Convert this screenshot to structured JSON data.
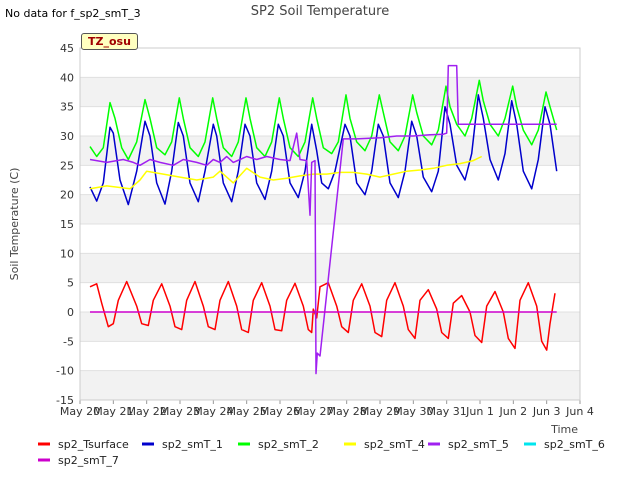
{
  "no_data_note": "No data for f_sp2_smT_3",
  "tz_label": "TZ_osu",
  "chart_data": {
    "type": "line",
    "title": "SP2 Soil Temperature",
    "xlabel": "Time",
    "ylabel": "Soil Temperature (C)",
    "ylim": [
      -15,
      45
    ],
    "yticks": [
      -15,
      -10,
      -5,
      0,
      5,
      10,
      15,
      20,
      25,
      30,
      35,
      40,
      45
    ],
    "xticks": [
      "May 20",
      "May 21",
      "May 22",
      "May 23",
      "May 24",
      "May 25",
      "May 26",
      "May 27",
      "May 28",
      "May 29",
      "May 30",
      "May 31",
      "Jun 1",
      "Jun 2",
      "Jun 3",
      "Jun 4"
    ],
    "xlim_days": [
      0,
      15
    ],
    "grid": "horizontal bands",
    "legend_position": "bottom",
    "series": [
      {
        "name": "sp2_Tsurface",
        "color": "#ff0000",
        "points": [
          [
            0.3,
            4.3
          ],
          [
            0.5,
            4.8
          ],
          [
            0.65,
            1.5
          ],
          [
            0.85,
            -2.5
          ],
          [
            1.0,
            -2.0
          ],
          [
            1.15,
            2.0
          ],
          [
            1.4,
            5.2
          ],
          [
            1.7,
            1.0
          ],
          [
            1.85,
            -2.0
          ],
          [
            2.05,
            -2.3
          ],
          [
            2.2,
            2.0
          ],
          [
            2.45,
            4.8
          ],
          [
            2.7,
            1.0
          ],
          [
            2.85,
            -2.5
          ],
          [
            3.05,
            -3.0
          ],
          [
            3.2,
            2.0
          ],
          [
            3.45,
            5.2
          ],
          [
            3.7,
            1.0
          ],
          [
            3.85,
            -2.5
          ],
          [
            4.05,
            -3.0
          ],
          [
            4.2,
            2.0
          ],
          [
            4.45,
            5.2
          ],
          [
            4.7,
            1.0
          ],
          [
            4.85,
            -3.0
          ],
          [
            5.05,
            -3.5
          ],
          [
            5.2,
            2.0
          ],
          [
            5.45,
            5.0
          ],
          [
            5.7,
            1.0
          ],
          [
            5.85,
            -3.0
          ],
          [
            6.05,
            -3.2
          ],
          [
            6.2,
            2.0
          ],
          [
            6.45,
            4.9
          ],
          [
            6.7,
            1.0
          ],
          [
            6.85,
            -3.0
          ],
          [
            6.95,
            -3.5
          ],
          [
            7.0,
            0.5
          ],
          [
            7.1,
            -1.0
          ],
          [
            7.2,
            4.3
          ],
          [
            7.45,
            5.0
          ],
          [
            7.7,
            1.0
          ],
          [
            7.85,
            -2.5
          ],
          [
            8.05,
            -3.5
          ],
          [
            8.2,
            2.0
          ],
          [
            8.45,
            4.8
          ],
          [
            8.7,
            1.0
          ],
          [
            8.85,
            -3.5
          ],
          [
            9.05,
            -4.2
          ],
          [
            9.2,
            2.0
          ],
          [
            9.45,
            5.0
          ],
          [
            9.7,
            1.0
          ],
          [
            9.85,
            -3.0
          ],
          [
            10.05,
            -4.5
          ],
          [
            10.2,
            2.0
          ],
          [
            10.45,
            3.8
          ],
          [
            10.7,
            0.5
          ],
          [
            10.85,
            -3.5
          ],
          [
            11.05,
            -4.5
          ],
          [
            11.2,
            1.5
          ],
          [
            11.45,
            2.8
          ],
          [
            11.7,
            0.0
          ],
          [
            11.85,
            -4.0
          ],
          [
            12.05,
            -5.2
          ],
          [
            12.2,
            1.0
          ],
          [
            12.45,
            3.5
          ],
          [
            12.7,
            0.0
          ],
          [
            12.85,
            -4.5
          ],
          [
            13.05,
            -6.2
          ],
          [
            13.2,
            2.0
          ],
          [
            13.45,
            5.0
          ],
          [
            13.7,
            1.0
          ],
          [
            13.85,
            -5.0
          ],
          [
            14.0,
            -6.5
          ],
          [
            14.1,
            -2.0
          ],
          [
            14.25,
            3.2
          ]
        ]
      },
      {
        "name": "sp2_smT_1",
        "color": "#0000cc",
        "points": [
          [
            0.3,
            21.3
          ],
          [
            0.5,
            18.9
          ],
          [
            0.7,
            22.0
          ],
          [
            0.9,
            31.5
          ],
          [
            1.0,
            30.5
          ],
          [
            1.2,
            22.5
          ],
          [
            1.45,
            18.3
          ],
          [
            1.7,
            24.0
          ],
          [
            1.95,
            32.5
          ],
          [
            2.1,
            30.0
          ],
          [
            2.3,
            22.0
          ],
          [
            2.55,
            18.4
          ],
          [
            2.75,
            24.0
          ],
          [
            2.95,
            32.3
          ],
          [
            3.1,
            30.0
          ],
          [
            3.3,
            22.0
          ],
          [
            3.55,
            18.8
          ],
          [
            3.75,
            24.0
          ],
          [
            4.0,
            32.0
          ],
          [
            4.1,
            30.0
          ],
          [
            4.3,
            22.0
          ],
          [
            4.55,
            18.8
          ],
          [
            4.75,
            24.0
          ],
          [
            4.95,
            32.0
          ],
          [
            5.1,
            30.0
          ],
          [
            5.3,
            22.0
          ],
          [
            5.55,
            19.2
          ],
          [
            5.75,
            24.0
          ],
          [
            5.95,
            32.0
          ],
          [
            6.1,
            30.0
          ],
          [
            6.3,
            22.0
          ],
          [
            6.55,
            19.5
          ],
          [
            6.75,
            24.0
          ],
          [
            6.95,
            32.0
          ],
          [
            7.1,
            27.5
          ],
          [
            7.25,
            22.0
          ],
          [
            7.45,
            21.0
          ],
          [
            7.65,
            24.0
          ],
          [
            7.95,
            32.0
          ],
          [
            8.1,
            30.0
          ],
          [
            8.3,
            22.0
          ],
          [
            8.55,
            20.0
          ],
          [
            8.75,
            24.0
          ],
          [
            8.95,
            32.0
          ],
          [
            9.1,
            30.0
          ],
          [
            9.3,
            22.0
          ],
          [
            9.55,
            19.5
          ],
          [
            9.75,
            24.0
          ],
          [
            9.95,
            32.5
          ],
          [
            10.1,
            30.0
          ],
          [
            10.3,
            23.0
          ],
          [
            10.55,
            20.5
          ],
          [
            10.75,
            24.0
          ],
          [
            10.95,
            35.0
          ],
          [
            11.1,
            32.0
          ],
          [
            11.3,
            25.0
          ],
          [
            11.55,
            22.5
          ],
          [
            11.75,
            27.0
          ],
          [
            11.95,
            37.0
          ],
          [
            12.1,
            33.0
          ],
          [
            12.3,
            26.0
          ],
          [
            12.55,
            22.5
          ],
          [
            12.75,
            27.0
          ],
          [
            12.95,
            36.0
          ],
          [
            13.1,
            32.0
          ],
          [
            13.3,
            24.0
          ],
          [
            13.55,
            21.0
          ],
          [
            13.75,
            26.0
          ],
          [
            13.95,
            35.0
          ],
          [
            14.1,
            32.0
          ],
          [
            14.3,
            24.0
          ]
        ]
      },
      {
        "name": "sp2_smT_2",
        "color": "#00ff00",
        "points": [
          [
            0.3,
            28.2
          ],
          [
            0.5,
            26.5
          ],
          [
            0.7,
            28.0
          ],
          [
            0.9,
            35.7
          ],
          [
            1.05,
            33.0
          ],
          [
            1.25,
            28.0
          ],
          [
            1.45,
            26.0
          ],
          [
            1.7,
            29.0
          ],
          [
            1.95,
            36.2
          ],
          [
            2.1,
            33.0
          ],
          [
            2.3,
            28.0
          ],
          [
            2.55,
            26.8
          ],
          [
            2.75,
            29.0
          ],
          [
            2.98,
            36.5
          ],
          [
            3.1,
            33.0
          ],
          [
            3.3,
            28.0
          ],
          [
            3.55,
            26.5
          ],
          [
            3.75,
            29.0
          ],
          [
            3.98,
            36.5
          ],
          [
            4.1,
            33.0
          ],
          [
            4.3,
            28.0
          ],
          [
            4.55,
            26.5
          ],
          [
            4.75,
            29.0
          ],
          [
            4.98,
            36.5
          ],
          [
            5.1,
            33.0
          ],
          [
            5.3,
            28.0
          ],
          [
            5.55,
            26.5
          ],
          [
            5.75,
            29.0
          ],
          [
            5.98,
            36.5
          ],
          [
            6.1,
            33.0
          ],
          [
            6.3,
            28.0
          ],
          [
            6.55,
            26.5
          ],
          [
            6.75,
            29.0
          ],
          [
            6.98,
            36.5
          ],
          [
            7.1,
            33.0
          ],
          [
            7.3,
            28.0
          ],
          [
            7.55,
            27.0
          ],
          [
            7.75,
            29.0
          ],
          [
            7.98,
            37.0
          ],
          [
            8.1,
            33.0
          ],
          [
            8.3,
            29.0
          ],
          [
            8.55,
            27.5
          ],
          [
            8.75,
            30.0
          ],
          [
            8.98,
            37.0
          ],
          [
            9.1,
            34.0
          ],
          [
            9.3,
            29.0
          ],
          [
            9.55,
            27.5
          ],
          [
            9.75,
            30.0
          ],
          [
            9.98,
            37.0
          ],
          [
            10.1,
            34.0
          ],
          [
            10.3,
            30.0
          ],
          [
            10.55,
            28.5
          ],
          [
            10.75,
            31.0
          ],
          [
            10.98,
            38.5
          ],
          [
            11.1,
            35.0
          ],
          [
            11.3,
            32.0
          ],
          [
            11.55,
            30.0
          ],
          [
            11.75,
            33.0
          ],
          [
            11.98,
            39.5
          ],
          [
            12.1,
            36.0
          ],
          [
            12.3,
            32.0
          ],
          [
            12.55,
            30.0
          ],
          [
            12.75,
            33.0
          ],
          [
            12.98,
            38.5
          ],
          [
            13.1,
            35.0
          ],
          [
            13.3,
            31.0
          ],
          [
            13.55,
            28.5
          ],
          [
            13.75,
            31.0
          ],
          [
            13.98,
            37.5
          ],
          [
            14.1,
            35.0
          ],
          [
            14.3,
            31.0
          ]
        ]
      },
      {
        "name": "sp2_smT_4",
        "color": "#ffff00",
        "points": [
          [
            0.3,
            21.0
          ],
          [
            0.8,
            21.5
          ],
          [
            1.5,
            21.0
          ],
          [
            1.8,
            22.5
          ],
          [
            2.0,
            24.0
          ],
          [
            2.5,
            23.5
          ],
          [
            3.0,
            23.0
          ],
          [
            3.5,
            22.5
          ],
          [
            4.0,
            23.0
          ],
          [
            4.2,
            24.0
          ],
          [
            4.6,
            22.0
          ],
          [
            5.0,
            24.5
          ],
          [
            5.4,
            23.0
          ],
          [
            5.8,
            22.5
          ],
          [
            6.2,
            22.8
          ],
          [
            6.6,
            23.2
          ],
          [
            7.0,
            23.5
          ],
          [
            7.4,
            23.5
          ],
          [
            7.8,
            23.8
          ],
          [
            8.2,
            23.8
          ],
          [
            8.6,
            23.5
          ],
          [
            9.0,
            23.0
          ],
          [
            9.4,
            23.5
          ],
          [
            9.8,
            24.0
          ],
          [
            10.2,
            24.2
          ],
          [
            10.6,
            24.5
          ],
          [
            11.0,
            25.0
          ],
          [
            11.4,
            25.3
          ],
          [
            11.8,
            25.8
          ],
          [
            12.05,
            26.5
          ]
        ]
      },
      {
        "name": "sp2_smT_5",
        "color": "#a020f0",
        "points": [
          [
            0.3,
            26.0
          ],
          [
            0.8,
            25.5
          ],
          [
            1.3,
            26.0
          ],
          [
            1.6,
            25.5
          ],
          [
            1.8,
            25.0
          ],
          [
            2.1,
            26.0
          ],
          [
            2.4,
            25.5
          ],
          [
            2.8,
            25.0
          ],
          [
            3.1,
            26.0
          ],
          [
            3.5,
            25.5
          ],
          [
            3.8,
            25.0
          ],
          [
            4.0,
            26.0
          ],
          [
            4.2,
            25.5
          ],
          [
            4.4,
            26.5
          ],
          [
            4.6,
            25.5
          ],
          [
            4.8,
            26.0
          ],
          [
            5.0,
            26.5
          ],
          [
            5.3,
            26.0
          ],
          [
            5.6,
            26.5
          ],
          [
            6.0,
            26.0
          ],
          [
            6.3,
            25.8
          ],
          [
            6.5,
            30.5
          ],
          [
            6.6,
            26.0
          ],
          [
            6.8,
            25.8
          ],
          [
            6.9,
            16.5
          ],
          [
            6.95,
            25.5
          ],
          [
            7.05,
            25.8
          ],
          [
            7.08,
            -10.5
          ],
          [
            7.12,
            -7.0
          ],
          [
            7.2,
            -7.5
          ],
          [
            7.9,
            29.5
          ],
          [
            8.3,
            29.5
          ],
          [
            9.0,
            29.7
          ],
          [
            9.5,
            30.0
          ],
          [
            10.0,
            30.0
          ],
          [
            10.5,
            30.2
          ],
          [
            10.9,
            30.3
          ],
          [
            11.0,
            30.5
          ],
          [
            11.05,
            42.0
          ],
          [
            11.3,
            42.0
          ],
          [
            11.35,
            32.0
          ],
          [
            12.0,
            32.0
          ],
          [
            13.0,
            32.0
          ],
          [
            14.3,
            32.0
          ]
        ]
      },
      {
        "name": "sp2_smT_6",
        "color": "#00e5ee",
        "points": []
      },
      {
        "name": "sp2_smT_7",
        "color": "#cc00cc",
        "points": [
          [
            0.3,
            0.0
          ],
          [
            14.3,
            0.0
          ]
        ]
      }
    ]
  }
}
